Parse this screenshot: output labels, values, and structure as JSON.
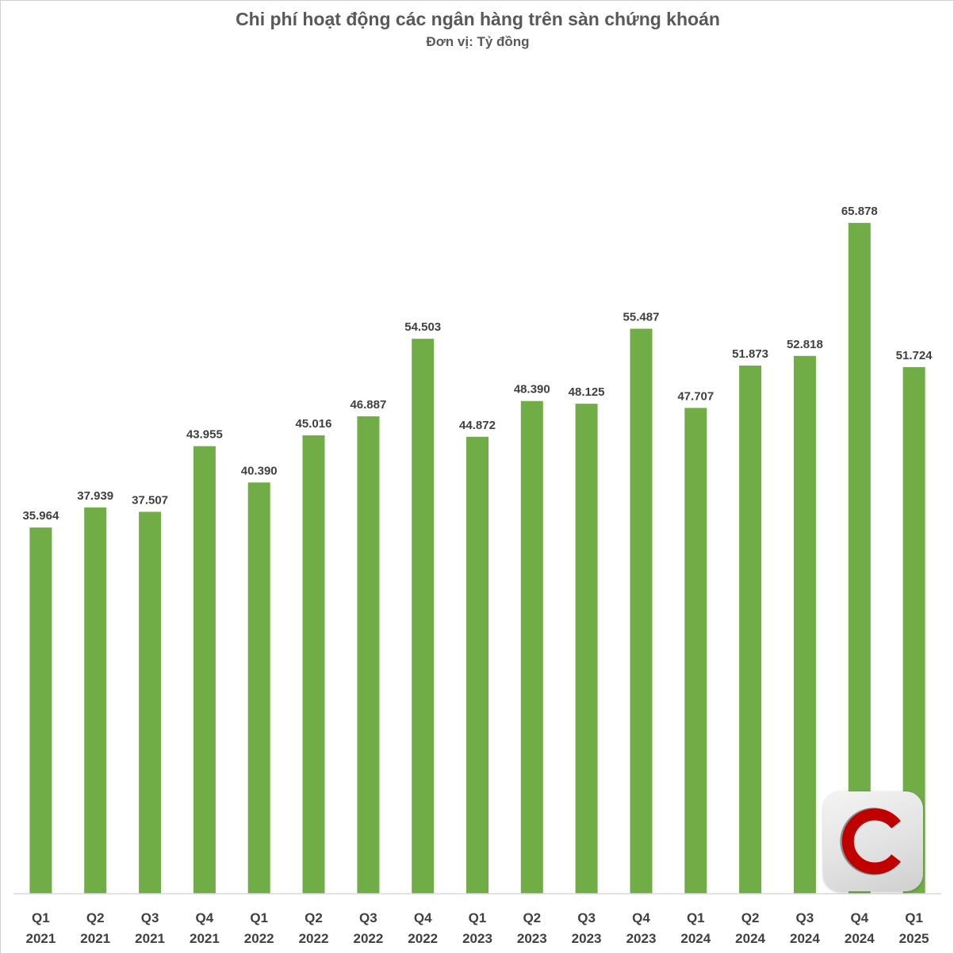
{
  "chart_data": {
    "type": "bar",
    "title": "Chi phí hoạt động các ngân hàng trên sàn chứng khoán",
    "subtitle": "Đơn vị: Tỷ đồng",
    "categories": [
      [
        "Q1",
        "2021"
      ],
      [
        "Q2",
        "2021"
      ],
      [
        "Q3",
        "2021"
      ],
      [
        "Q4",
        "2021"
      ],
      [
        "Q1",
        "2022"
      ],
      [
        "Q2",
        "2022"
      ],
      [
        "Q3",
        "2022"
      ],
      [
        "Q4",
        "2022"
      ],
      [
        "Q1",
        "2023"
      ],
      [
        "Q2",
        "2023"
      ],
      [
        "Q3",
        "2023"
      ],
      [
        "Q4",
        "2023"
      ],
      [
        "Q1",
        "2024"
      ],
      [
        "Q2",
        "2024"
      ],
      [
        "Q3",
        "2024"
      ],
      [
        "Q4",
        "2024"
      ],
      [
        "Q1",
        "2025"
      ]
    ],
    "values": [
      35964,
      37939,
      37507,
      43955,
      40390,
      45016,
      46887,
      54503,
      44872,
      48390,
      48125,
      55487,
      47707,
      51873,
      52818,
      65878,
      51724
    ],
    "data_labels": [
      "35.964",
      "37.939",
      "37.507",
      "43.955",
      "40.390",
      "45.016",
      "46.887",
      "54.503",
      "44.872",
      "48.390",
      "48.125",
      "55.487",
      "47.707",
      "51.873",
      "52.818",
      "65.878",
      "51.724"
    ],
    "ylim": [
      0,
      70000
    ],
    "bar_color": "#70AD47",
    "grid": false,
    "legend": "none"
  },
  "logo": {
    "icon": "c-logo-icon",
    "accent": "#C00000"
  }
}
